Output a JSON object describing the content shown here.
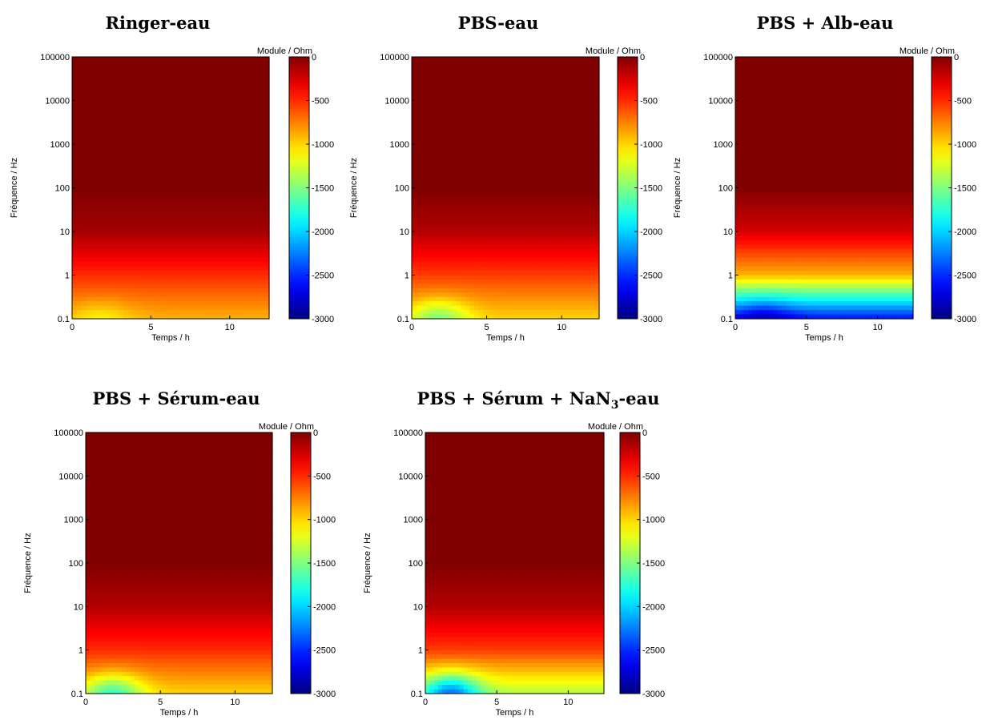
{
  "chart_data": [
    {
      "type": "heatmap",
      "title": "Ringer-eau",
      "xlabel": "Temps / h",
      "ylabel": "Fréquence / Hz",
      "colorbar_label": "Module / Ohm",
      "x_ticks": [
        "0",
        "5",
        "10"
      ],
      "y_ticks": [
        "0.1",
        "1",
        "10",
        "100",
        "1000",
        "10000",
        "100000"
      ],
      "colorbar_ticks": [
        "0",
        "-500",
        "-1000",
        "-1500",
        "-2000",
        "-2500",
        "-3000"
      ],
      "xlim": [
        0,
        12.5
      ],
      "ylim": [
        0.1,
        100000
      ],
      "y_scale": "log",
      "clim": [
        -3000,
        0
      ],
      "colormap": "jet",
      "z_by_log_frequency": {
        "0.1": -900,
        "1": -500,
        "10": -100,
        "100": 0,
        "1000": 0,
        "10000": 0,
        "100000": 0
      },
      "low_frequency_dip": {
        "time_h": 1.8,
        "value": -1100
      }
    },
    {
      "type": "heatmap",
      "title": "PBS-eau",
      "xlabel": "Temps / h",
      "ylabel": "Fréquence / Hz",
      "colorbar_label": "Module / Ohm",
      "x_ticks": [
        "0",
        "5",
        "10"
      ],
      "y_ticks": [
        "0.1",
        "1",
        "10",
        "100",
        "1000",
        "10000",
        "100000"
      ],
      "colorbar_ticks": [
        "0",
        "-500",
        "-1000",
        "-1500",
        "-2000",
        "-2500",
        "-3000"
      ],
      "xlim": [
        0,
        12.5
      ],
      "ylim": [
        0.1,
        100000
      ],
      "y_scale": "log",
      "clim": [
        -3000,
        0
      ],
      "colormap": "jet",
      "z_by_log_frequency": {
        "0.1": -1000,
        "1": -550,
        "10": -150,
        "100": 0,
        "1000": 0,
        "10000": 0,
        "100000": 0
      },
      "low_frequency_dip": {
        "time_h": 1.8,
        "value": -1500
      }
    },
    {
      "type": "heatmap",
      "title": "PBS + Alb-eau",
      "xlabel": "Temps / h",
      "ylabel": "Fréquence / Hz",
      "colorbar_label": "Module / Ohm",
      "x_ticks": [
        "0",
        "5",
        "10"
      ],
      "y_ticks": [
        "0.1",
        "1",
        "10",
        "100",
        "1000",
        "10000",
        "100000"
      ],
      "colorbar_ticks": [
        "0",
        "-500",
        "-1000",
        "-1500",
        "-2000",
        "-2500",
        "-3000"
      ],
      "xlim": [
        0,
        12.5
      ],
      "ylim": [
        0.1,
        100000
      ],
      "y_scale": "log",
      "clim": [
        -3000,
        0
      ],
      "colormap": "jet",
      "z_by_log_frequency": {
        "0.1": -2600,
        "1": -900,
        "10": -250,
        "100": 0,
        "1000": 0,
        "10000": 0,
        "100000": 0
      },
      "low_frequency_dip": {
        "time_h": 2.0,
        "value": -2900
      }
    },
    {
      "type": "heatmap",
      "title": "PBS + Sérum-eau",
      "xlabel": "Temps / h",
      "ylabel": "Fréquence / Hz",
      "colorbar_label": "Module / Ohm",
      "x_ticks": [
        "0",
        "5",
        "10"
      ],
      "y_ticks": [
        "0.1",
        "1",
        "10",
        "100",
        "1000",
        "10000",
        "100000"
      ],
      "colorbar_ticks": [
        "0",
        "-500",
        "-1000",
        "-1500",
        "-2000",
        "-2500",
        "-3000"
      ],
      "xlim": [
        0,
        12.5
      ],
      "ylim": [
        0.1,
        100000
      ],
      "y_scale": "log",
      "clim": [
        -3000,
        0
      ],
      "colormap": "jet",
      "z_by_log_frequency": {
        "0.1": -1000,
        "1": -500,
        "10": -150,
        "100": 0,
        "1000": 0,
        "10000": 0,
        "100000": 0
      },
      "low_frequency_dip": {
        "time_h": 1.8,
        "value": -1700
      }
    },
    {
      "type": "heatmap",
      "title": "PBS + Sérum + NaN",
      "title_subscript": "3",
      "title_suffix": "-eau",
      "xlabel": "Temps / h",
      "ylabel": "Fréquence / Hz",
      "colorbar_label": "Module / Ohm",
      "x_ticks": [
        "0",
        "5",
        "10"
      ],
      "y_ticks": [
        "0.1",
        "1",
        "10",
        "100",
        "1000",
        "10000",
        "100000"
      ],
      "colorbar_ticks": [
        "0",
        "-500",
        "-1000",
        "-1500",
        "-2000",
        "-2500",
        "-3000"
      ],
      "xlim": [
        0,
        12.5
      ],
      "ylim": [
        0.1,
        100000
      ],
      "y_scale": "log",
      "clim": [
        -3000,
        0
      ],
      "colormap": "jet",
      "z_by_log_frequency": {
        "0.1": -1350,
        "1": -550,
        "10": -150,
        "100": 0,
        "1000": 0,
        "10000": 0,
        "100000": 0
      },
      "low_frequency_dip": {
        "time_h": 1.8,
        "value": -2300
      }
    }
  ]
}
